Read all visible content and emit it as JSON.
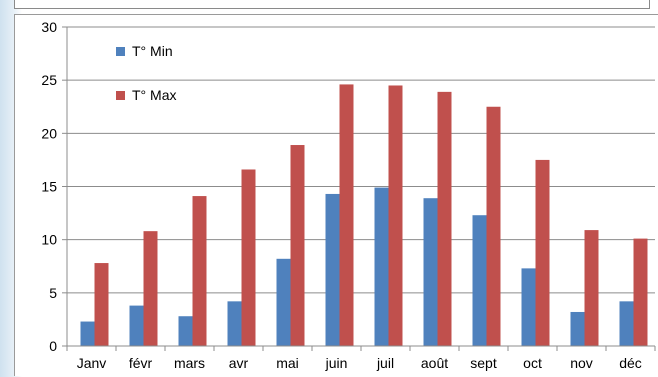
{
  "chart_data": {
    "type": "bar",
    "categories": [
      "Janv",
      "févr",
      "mars",
      "avr",
      "mai",
      "juin",
      "juil",
      "août",
      "sept",
      "oct",
      "nov",
      "déc"
    ],
    "series": [
      {
        "name": "T° Min",
        "color": "#4f81bd",
        "values": [
          2.3,
          3.8,
          2.8,
          4.2,
          8.2,
          14.3,
          14.9,
          13.9,
          12.3,
          7.3,
          3.2,
          4.2
        ]
      },
      {
        "name": "T° Max",
        "color": "#c0504d",
        "values": [
          7.8,
          10.8,
          14.1,
          16.6,
          18.9,
          24.6,
          24.5,
          23.9,
          22.5,
          17.5,
          10.9,
          10.1
        ]
      }
    ],
    "ylim": [
      0,
      30
    ],
    "yticks": [
      "0",
      "5",
      "10",
      "15",
      "20",
      "25",
      "30"
    ],
    "grid": true,
    "legend_position": "top-left",
    "title": "",
    "xlabel": "",
    "ylabel": ""
  }
}
